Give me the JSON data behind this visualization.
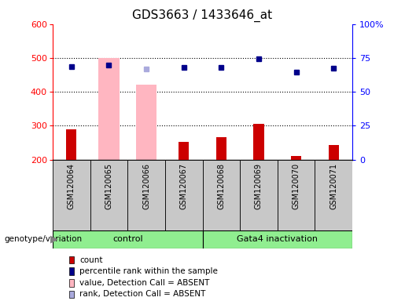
{
  "title": "GDS3663 / 1433646_at",
  "samples": [
    "GSM120064",
    "GSM120065",
    "GSM120066",
    "GSM120067",
    "GSM120068",
    "GSM120069",
    "GSM120070",
    "GSM120071"
  ],
  "count_values": [
    290,
    null,
    null,
    253,
    265,
    305,
    210,
    242
  ],
  "percentile_values": [
    475,
    478,
    null,
    472,
    471,
    498,
    457,
    470
  ],
  "absent_value_bars": [
    null,
    500,
    422,
    null,
    null,
    null,
    null,
    null
  ],
  "absent_rank_markers": [
    null,
    null,
    468,
    null,
    null,
    null,
    null,
    null
  ],
  "groups": [
    {
      "label": "control",
      "samples": [
        0,
        1,
        2,
        3
      ],
      "color": "#90EE90"
    },
    {
      "label": "Gata4 inactivation",
      "samples": [
        4,
        5,
        6,
        7
      ],
      "color": "#90EE90"
    }
  ],
  "ylim_left": [
    200,
    600
  ],
  "yticks_left": [
    200,
    300,
    400,
    500,
    600
  ],
  "yticks_right": [
    0,
    25,
    50,
    75,
    100
  ],
  "yticklabels_right": [
    "0",
    "25",
    "50",
    "75",
    "100%"
  ],
  "bar_color_red": "#CC0000",
  "bar_color_pink": "#FFB6C1",
  "marker_color_blue": "#00008B",
  "marker_color_lightblue": "#AAAADD",
  "grid_dotted_values": [
    300,
    400,
    500
  ],
  "legend_items": [
    {
      "label": "count",
      "color": "#CC0000"
    },
    {
      "label": "percentile rank within the sample",
      "color": "#00008B"
    },
    {
      "label": "value, Detection Call = ABSENT",
      "color": "#FFB6C1"
    },
    {
      "label": "rank, Detection Call = ABSENT",
      "color": "#AAAADD"
    }
  ],
  "sample_box_color": "#C8C8C8",
  "plot_bg_color": "#FFFFFF"
}
